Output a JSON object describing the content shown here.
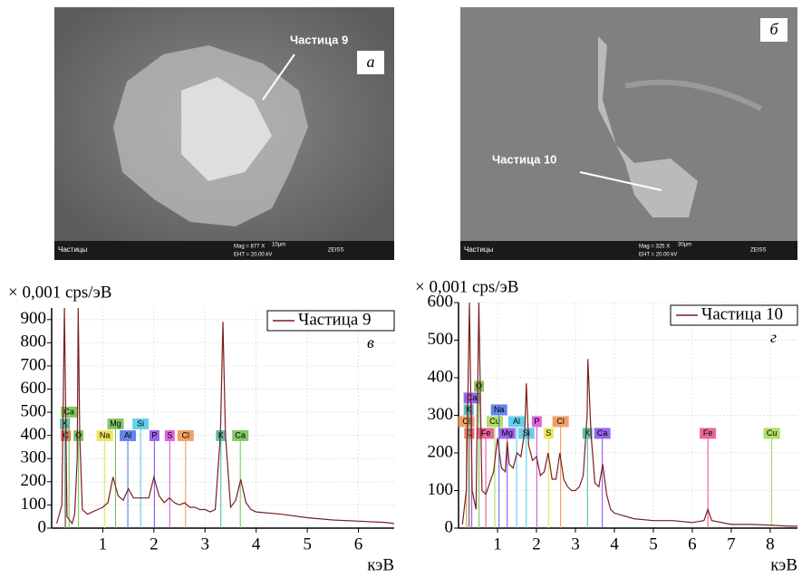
{
  "images": [
    {
      "label": "а",
      "particle": "Частица 9",
      "bar_left": "Частицы",
      "mag": "Mag =  877 X",
      "eht": "EHT = 20.00 kV",
      "scale": "10µm",
      "brand": "ZEISS"
    },
    {
      "label": "б",
      "particle": "Частица 10",
      "bar_left": "Частицы",
      "mag": "Mag =  325 X",
      "eht": "EHT = 20.00 kV",
      "scale": "30µm",
      "brand": "ZEISS"
    }
  ],
  "chart_data": [
    {
      "type": "line",
      "y_label": "× 0,001 cps/эВ",
      "x_label": "кэВ",
      "annotation": "в",
      "grid": true,
      "legend": "upper right",
      "xlim": [
        0,
        6.7
      ],
      "ylim": [
        0,
        950
      ],
      "xticks": [
        1,
        2,
        3,
        4,
        5,
        6
      ],
      "yticks": [
        0,
        100,
        200,
        300,
        400,
        500,
        600,
        700,
        800,
        900
      ],
      "x": [
        0.1,
        0.2,
        0.25,
        0.3,
        0.4,
        0.45,
        0.5,
        0.52,
        0.55,
        0.6,
        0.7,
        0.8,
        0.9,
        1.0,
        1.1,
        1.2,
        1.3,
        1.4,
        1.5,
        1.6,
        1.7,
        1.8,
        1.9,
        2.0,
        2.1,
        2.2,
        2.3,
        2.4,
        2.5,
        2.6,
        2.7,
        2.8,
        2.9,
        3.0,
        3.1,
        3.2,
        3.3,
        3.35,
        3.4,
        3.5,
        3.6,
        3.7,
        3.8,
        3.9,
        4.0,
        4.5,
        5.0,
        5.5,
        6.0,
        6.5,
        6.7
      ],
      "series": [
        {
          "name": "Частица 9",
          "color": "#7a1f1f",
          "values": [
            20,
            100,
            950,
            50,
            20,
            60,
            300,
            950,
            400,
            80,
            60,
            70,
            80,
            90,
            110,
            220,
            140,
            120,
            170,
            130,
            130,
            130,
            130,
            220,
            140,
            110,
            130,
            110,
            100,
            110,
            90,
            90,
            80,
            80,
            70,
            80,
            400,
            890,
            400,
            90,
            120,
            210,
            110,
            80,
            70,
            60,
            45,
            35,
            30,
            25,
            20
          ]
        }
      ],
      "elements": [
        {
          "label": "C",
          "x": 0.277,
          "color": "#e8534a"
        },
        {
          "label": "K",
          "x": 0.26,
          "color": "#3fb7a0"
        },
        {
          "label": "Ca",
          "x": 0.34,
          "color": "#6cc04a"
        },
        {
          "label": "O",
          "x": 0.525,
          "color": "#6cc04a"
        },
        {
          "label": "Na",
          "x": 1.04,
          "color": "#e8e04a"
        },
        {
          "label": "Mg",
          "x": 1.25,
          "color": "#6cc04a"
        },
        {
          "label": "Al",
          "x": 1.49,
          "color": "#4a6fe8"
        },
        {
          "label": "Si",
          "x": 1.74,
          "color": "#4ac8e8"
        },
        {
          "label": "P",
          "x": 2.01,
          "color": "#8a4ae8"
        },
        {
          "label": "S",
          "x": 2.31,
          "color": "#d84ad8"
        },
        {
          "label": "Cl",
          "x": 2.62,
          "color": "#f0904a"
        },
        {
          "label": "K",
          "x": 3.31,
          "color": "#3fb7a0"
        },
        {
          "label": "Ca",
          "x": 3.69,
          "color": "#6cc04a"
        }
      ]
    },
    {
      "type": "line",
      "y_label": "× 0,001 cps/эВ",
      "x_label": "кэВ",
      "annotation": "г",
      "grid": true,
      "legend": "upper right",
      "xlim": [
        0,
        8.7
      ],
      "ylim": [
        0,
        600
      ],
      "xticks": [
        1,
        2,
        3,
        4,
        5,
        6,
        7,
        8
      ],
      "yticks": [
        0,
        100,
        200,
        300,
        400,
        500,
        600
      ],
      "x": [
        0.1,
        0.2,
        0.28,
        0.35,
        0.45,
        0.52,
        0.6,
        0.7,
        0.8,
        0.9,
        1.0,
        1.1,
        1.2,
        1.25,
        1.3,
        1.4,
        1.5,
        1.6,
        1.7,
        1.74,
        1.8,
        1.9,
        2.0,
        2.1,
        2.2,
        2.3,
        2.4,
        2.5,
        2.6,
        2.7,
        2.8,
        2.9,
        3.0,
        3.1,
        3.2,
        3.3,
        3.32,
        3.4,
        3.5,
        3.6,
        3.7,
        3.8,
        3.9,
        4.0,
        4.5,
        5.0,
        5.5,
        6.0,
        6.3,
        6.4,
        6.5,
        7.0,
        7.5,
        8.0,
        8.5,
        8.7
      ],
      "series": [
        {
          "name": "Частица 10",
          "color": "#7a1f1f",
          "values": [
            10,
            100,
            600,
            100,
            50,
            600,
            100,
            90,
            120,
            150,
            240,
            160,
            150,
            230,
            170,
            160,
            200,
            190,
            260,
            385,
            220,
            180,
            190,
            140,
            150,
            200,
            130,
            130,
            200,
            130,
            110,
            100,
            100,
            110,
            140,
            300,
            450,
            250,
            120,
            110,
            170,
            90,
            50,
            40,
            25,
            20,
            20,
            15,
            20,
            50,
            20,
            10,
            10,
            8,
            5,
            5
          ]
        }
      ],
      "elements": [
        {
          "label": "C",
          "x": 0.277,
          "color": "#e8534a"
        },
        {
          "label": "Cl",
          "x": 0.2,
          "color": "#f0904a"
        },
        {
          "label": "K",
          "x": 0.26,
          "color": "#3fb7a0"
        },
        {
          "label": "Ca",
          "x": 0.34,
          "color": "#8a4ae8"
        },
        {
          "label": "O",
          "x": 0.525,
          "color": "#6cc04a"
        },
        {
          "label": "Fe",
          "x": 0.7,
          "color": "#e84a8a"
        },
        {
          "label": "Cu",
          "x": 0.93,
          "color": "#a0d84a"
        },
        {
          "label": "Na",
          "x": 1.04,
          "color": "#4a6fe8"
        },
        {
          "label": "Mg",
          "x": 1.25,
          "color": "#8a4ae8"
        },
        {
          "label": "Al",
          "x": 1.49,
          "color": "#4ac8e8"
        },
        {
          "label": "Si",
          "x": 1.74,
          "color": "#4ac8e8"
        },
        {
          "label": "P",
          "x": 2.01,
          "color": "#d84ad8"
        },
        {
          "label": "S",
          "x": 2.31,
          "color": "#e8e04a"
        },
        {
          "label": "Cl",
          "x": 2.62,
          "color": "#f0904a"
        },
        {
          "label": "K",
          "x": 3.31,
          "color": "#3fb7a0"
        },
        {
          "label": "Ca",
          "x": 3.69,
          "color": "#8a4ae8"
        },
        {
          "label": "Fe",
          "x": 6.4,
          "color": "#e84a8a"
        },
        {
          "label": "Cu",
          "x": 8.04,
          "color": "#a0d84a"
        }
      ]
    }
  ]
}
